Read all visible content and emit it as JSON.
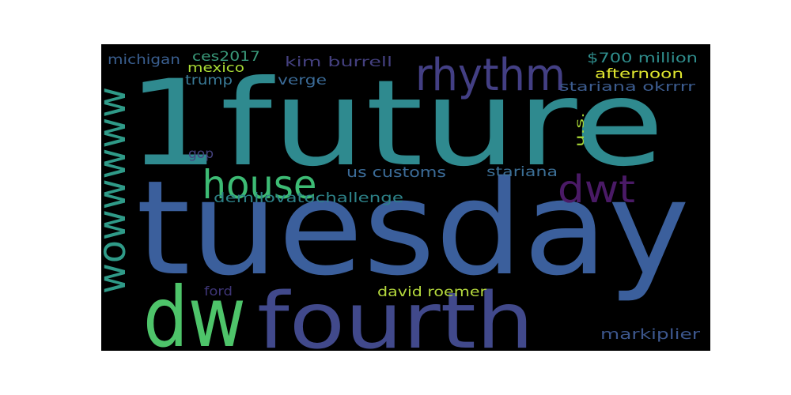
{
  "wordcloud": {
    "words": [
      {
        "text": "1future",
        "color": "#2f8a8f"
      },
      {
        "text": "tuesday",
        "color": "#3b5f9c"
      },
      {
        "text": "dw",
        "color": "#4ec46a"
      },
      {
        "text": "fourth",
        "color": "#41498b"
      },
      {
        "text": "wowwwww",
        "color": "#2f9a88"
      },
      {
        "text": "rhythm",
        "color": "#433f84"
      },
      {
        "text": "house",
        "color": "#3dbb74"
      },
      {
        "text": "dwt",
        "color": "#4a1a66"
      },
      {
        "text": "demilovatochallenge",
        "color": "#2d8288"
      },
      {
        "text": "us customs",
        "color": "#3b6b97"
      },
      {
        "text": "stariana",
        "color": "#3c6f96"
      },
      {
        "text": "david roemer",
        "color": "#b4d83d"
      },
      {
        "text": "markiplier",
        "color": "#3c568c"
      },
      {
        "text": "michigan",
        "color": "#3a5f90"
      },
      {
        "text": "ces2017",
        "color": "#3a9a7a"
      },
      {
        "text": "mexico",
        "color": "#aadc35"
      },
      {
        "text": "trump",
        "color": "#3a7b98"
      },
      {
        "text": "kim burrell",
        "color": "#44407f"
      },
      {
        "text": "verge",
        "color": "#3b6b97"
      },
      {
        "text": "$700 million",
        "color": "#2f8d8c"
      },
      {
        "text": "afternoon",
        "color": "#dfe62f"
      },
      {
        "text": "stariana okrrrr",
        "color": "#3c5c8f"
      },
      {
        "text": "u.s.",
        "color": "#a9d735"
      },
      {
        "text": "gop",
        "color": "#44427e"
      },
      {
        "text": "ford",
        "color": "#3e3577"
      }
    ]
  }
}
